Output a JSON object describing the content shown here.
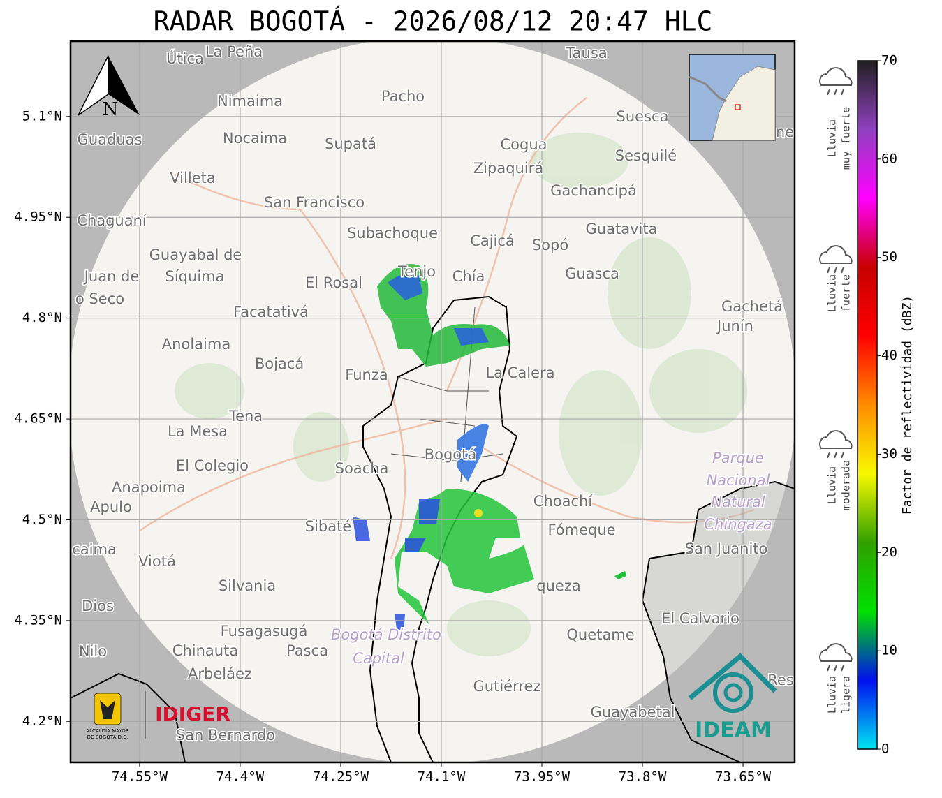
{
  "title": "RADAR BOGOTÁ - 2026/08/12 20:47 HLC",
  "north": "N",
  "map": {
    "xlim": [
      -74.653,
      -73.573
    ],
    "ylim": [
      4.139,
      5.212
    ],
    "grid": true,
    "xticks": [
      {
        "value": -74.55,
        "label": "74.55°W"
      },
      {
        "value": -74.4,
        "label": "74.4°W"
      },
      {
        "value": -74.25,
        "label": "74.25°W"
      },
      {
        "value": -74.1,
        "label": "74.1°W"
      },
      {
        "value": -73.95,
        "label": "73.95°W"
      },
      {
        "value": -73.8,
        "label": "73.8°W"
      },
      {
        "value": -73.65,
        "label": "73.65°W"
      }
    ],
    "yticks": [
      {
        "value": 5.1,
        "label": "5.1°N"
      },
      {
        "value": 4.95,
        "label": "4.95°N"
      },
      {
        "value": 4.8,
        "label": "4.8°N"
      },
      {
        "value": 4.65,
        "label": "4.65°N"
      },
      {
        "value": 4.5,
        "label": "4.5°N"
      },
      {
        "value": 4.35,
        "label": "4.35°N"
      },
      {
        "value": 4.2,
        "label": "4.2°N"
      }
    ],
    "places": [
      "Útica",
      "La Peña",
      "Tausa",
      "Nimaima",
      "Pacho",
      "Suesca",
      "Guaduas",
      "Nocaima",
      "Supatá",
      "Cogua",
      "Sesquilé",
      "Zipaquirá",
      "Villeta",
      "Gachancipá",
      "San Francisco",
      "Chaguaní",
      "Guatavita",
      "Subachoque",
      "Cajicá",
      "Sopó",
      "Guayabal de",
      "Síquima",
      "Juan de",
      "o Seco",
      "Tenjo",
      "Chía",
      "El Rosal",
      "Guasca",
      "Facatativá",
      "Gachetá",
      "Junín",
      "Anolaima",
      "Bojacá",
      "Funza",
      "La Calera",
      "Tena",
      "La Mesa",
      "Parque",
      "Nacional",
      "Natural",
      "Chingaza",
      "El Colegio",
      "Soacha",
      "Bogotá",
      "Anapoima",
      "Apulo",
      "Choachí",
      "Sibaté",
      "Fómeque",
      "San Juanito",
      "caima",
      "Viotá",
      "Silvania",
      "queza",
      "Dios",
      "El Calvario",
      "Fusagasugá",
      "Bogotá Distrito",
      "Capital",
      "Quetame",
      "Nilo",
      "Chinauta",
      "Pasca",
      "Arbeláez",
      "Gutiérrez",
      "Res",
      "Guayabetal",
      "San Bernardo",
      "ne"
    ]
  },
  "colorbar": {
    "label": "Factor de reflectividad (dBZ)",
    "lim": [
      0,
      70
    ],
    "ticks": [
      0,
      10,
      20,
      30,
      40,
      50,
      60,
      70
    ],
    "colors": [
      "#00e5f0",
      "#0010f0",
      "#00e000",
      "#30a000",
      "#f8f800",
      "#ff8c00",
      "#ff0000",
      "#c80000",
      "#ff00ff",
      "#9040c0",
      "#202020"
    ]
  },
  "intensity": [
    {
      "lines": [
        "Lluvia",
        "muy fuerte"
      ]
    },
    {
      "lines": [
        "Lluvia",
        "fuerte"
      ]
    },
    {
      "lines": [
        "Lluvia",
        "moderada"
      ]
    },
    {
      "lines": [
        "Lluvia",
        "ligera"
      ]
    }
  ],
  "logos": {
    "alcaldia": [
      "ALCALDÍA MAYOR",
      "DE BOGOTÁ D.C."
    ],
    "idiger": "IDIGER",
    "ideam": "IDEAM"
  }
}
